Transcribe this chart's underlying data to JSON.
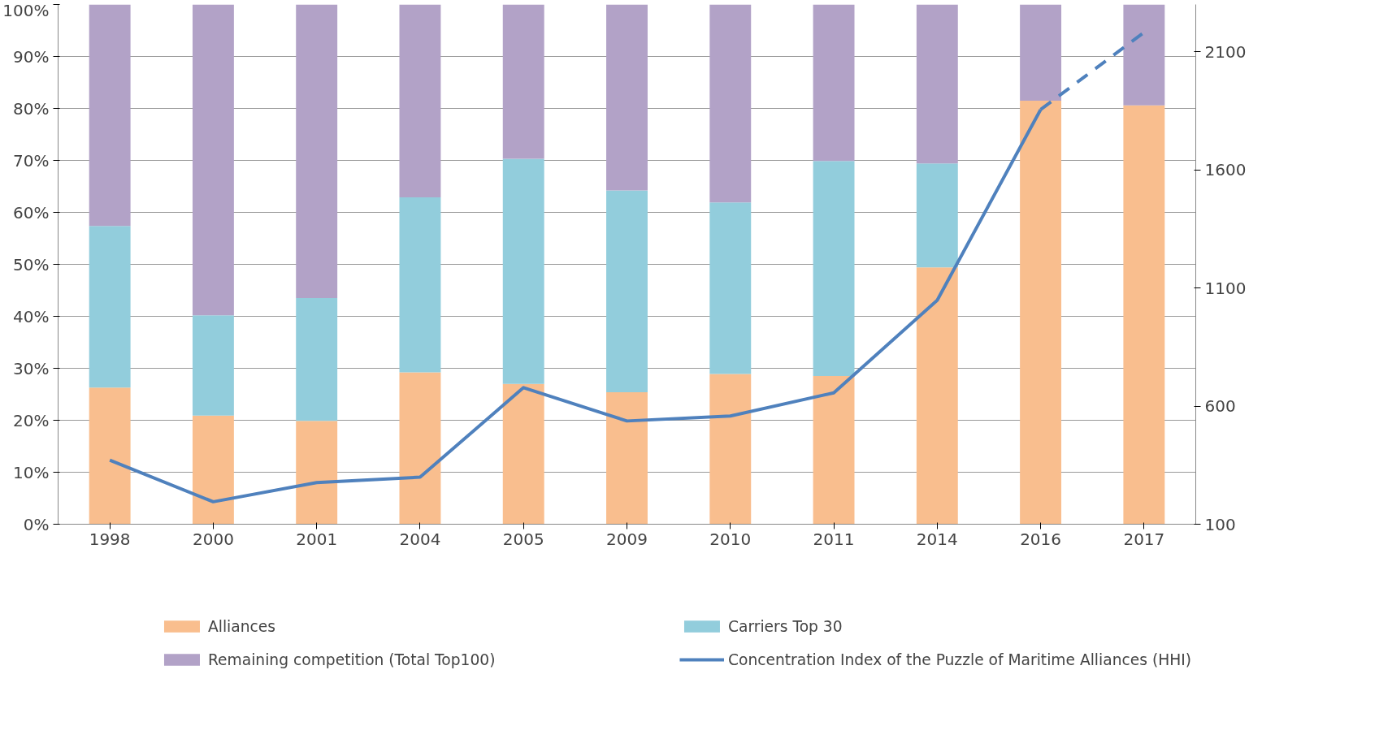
{
  "chart_data": {
    "type": "bar",
    "stacked": true,
    "categories": [
      "1998",
      "2000",
      "2001",
      "2004",
      "2005",
      "2009",
      "2010",
      "2011",
      "2014",
      "2016",
      "2017"
    ],
    "series": [
      {
        "name": "Alliances",
        "color": "#f9be8e",
        "values": [
          26.3,
          20.9,
          19.9,
          29.2,
          27,
          25.4,
          28.9,
          28.5,
          49.4,
          81.5,
          80.6
        ]
      },
      {
        "name": "Carriers Top 30",
        "color": "#92cddc",
        "values": [
          31.1,
          19.3,
          23.6,
          33.7,
          43.3,
          38.8,
          33,
          41.4,
          20,
          0,
          0
        ]
      },
      {
        "name": "Remaining competition (Total Top100)",
        "color": "#b2a2c7",
        "values": [
          42.6,
          59.8,
          56.5,
          37.1,
          29.7,
          35.8,
          38.1,
          30.1,
          30.6,
          18.5,
          19.4
        ]
      },
      {
        "name": "Concentration Index of the Puzzle of Maritime Alliances (HHI)",
        "type": "line",
        "axis": "y2",
        "color": "#4f81bd",
        "line_style": "solid",
        "values": [
          371,
          195,
          276,
          299,
          678,
          537,
          558,
          656,
          1048,
          1855,
          null
        ]
      },
      {
        "type": "line",
        "axis": "y2",
        "color": "#4f81bd",
        "line_style": "dashed",
        "values": [
          null,
          null,
          null,
          null,
          null,
          null,
          null,
          null,
          null,
          1855,
          2182
        ]
      }
    ],
    "ylim": [
      0,
      100
    ],
    "yticks": [
      {
        "value": 0,
        "label": "0%"
      },
      {
        "value": 10,
        "label": "10%"
      },
      {
        "value": 20,
        "label": "20%"
      },
      {
        "value": 30,
        "label": "30%"
      },
      {
        "value": 40,
        "label": "40%"
      },
      {
        "value": 50,
        "label": "50%"
      },
      {
        "value": 60,
        "label": "60%"
      },
      {
        "value": 70,
        "label": "70%"
      },
      {
        "value": 80,
        "label": "80%"
      },
      {
        "value": 90,
        "label": "90%"
      },
      {
        "value": 100,
        "label": "100%"
      }
    ],
    "y2lim": [
      100,
      2300
    ],
    "y2ticks": [
      100,
      600,
      1100,
      1600,
      2100
    ],
    "grid": "y",
    "legend": "bottom"
  }
}
